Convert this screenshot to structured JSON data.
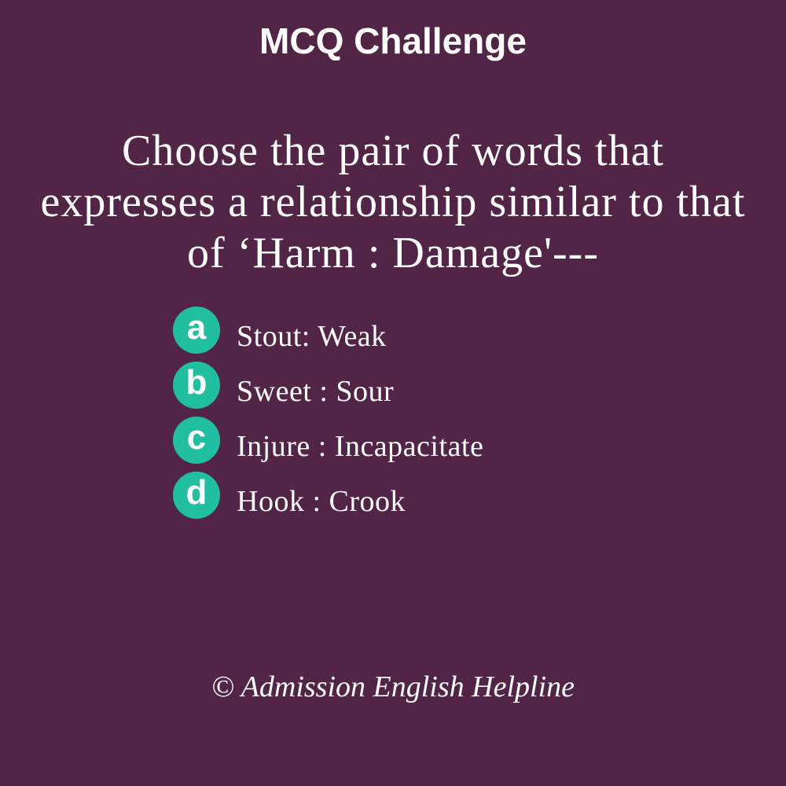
{
  "header": {
    "title": "MCQ Challenge"
  },
  "question": {
    "text": "Choose the pair of words that expresses a relationship similar to that of ‘Harm : Damage'---"
  },
  "options": [
    {
      "letter": "a",
      "text": "Stout: Weak"
    },
    {
      "letter": "b",
      "text": "Sweet : Sour"
    },
    {
      "letter": "c",
      "text": "Injure : Incapacitate"
    },
    {
      "letter": "d",
      "text": "Hook : Crook"
    }
  ],
  "footer": {
    "copyright": "© Admission English Helpline"
  },
  "colors": {
    "background": "#522546",
    "badge": "#1fbf9f",
    "text": "#ffffff"
  }
}
